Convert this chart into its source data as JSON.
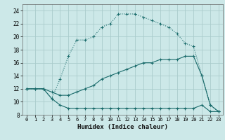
{
  "xlabel": "Humidex (Indice chaleur)",
  "bg_color": "#cce8e8",
  "grid_color": "#aacccc",
  "line_color": "#1a6b6b",
  "x_ticks": [
    0,
    1,
    2,
    3,
    4,
    5,
    6,
    7,
    8,
    9,
    10,
    11,
    12,
    13,
    14,
    15,
    16,
    17,
    18,
    19,
    20,
    21,
    22,
    23
  ],
  "ylim": [
    8,
    25
  ],
  "xlim": [
    -0.5,
    23.5
  ],
  "yticks": [
    8,
    10,
    12,
    14,
    16,
    18,
    20,
    22,
    24
  ],
  "curve1_x": [
    0,
    1,
    2,
    3,
    4,
    5,
    6,
    7,
    8,
    9,
    10,
    11,
    12,
    13,
    14,
    15,
    16,
    17,
    18,
    19,
    20,
    21,
    22,
    23
  ],
  "curve1_y": [
    12.0,
    12.0,
    12.0,
    10.5,
    9.5,
    9.0,
    9.0,
    9.0,
    9.0,
    9.0,
    9.0,
    9.0,
    9.0,
    9.0,
    9.0,
    9.0,
    9.0,
    9.0,
    9.0,
    9.0,
    9.0,
    9.5,
    8.5,
    8.5
  ],
  "curve2_x": [
    0,
    1,
    2,
    3,
    4,
    5,
    6,
    7,
    8,
    9,
    10,
    11,
    12,
    13,
    14,
    15,
    16,
    17,
    18,
    19,
    20,
    21,
    22,
    23
  ],
  "curve2_y": [
    12.0,
    12.0,
    12.0,
    11.5,
    11.0,
    11.0,
    11.5,
    12.0,
    12.5,
    13.5,
    14.0,
    14.5,
    15.0,
    15.5,
    16.0,
    16.0,
    16.5,
    16.5,
    16.5,
    17.0,
    17.0,
    14.0,
    9.5,
    8.5
  ],
  "curve3_x": [
    0,
    2,
    3,
    4,
    5,
    6,
    7,
    8,
    9,
    10,
    11,
    12,
    13,
    14,
    15,
    16,
    17,
    18,
    19,
    20,
    21,
    22,
    23
  ],
  "curve3_y": [
    12.0,
    12.0,
    10.5,
    13.5,
    17.0,
    19.5,
    19.5,
    20.0,
    21.5,
    22.0,
    23.5,
    23.5,
    23.5,
    23.0,
    22.5,
    22.0,
    21.5,
    20.5,
    19.0,
    18.5,
    14.0,
    9.5,
    8.5
  ]
}
